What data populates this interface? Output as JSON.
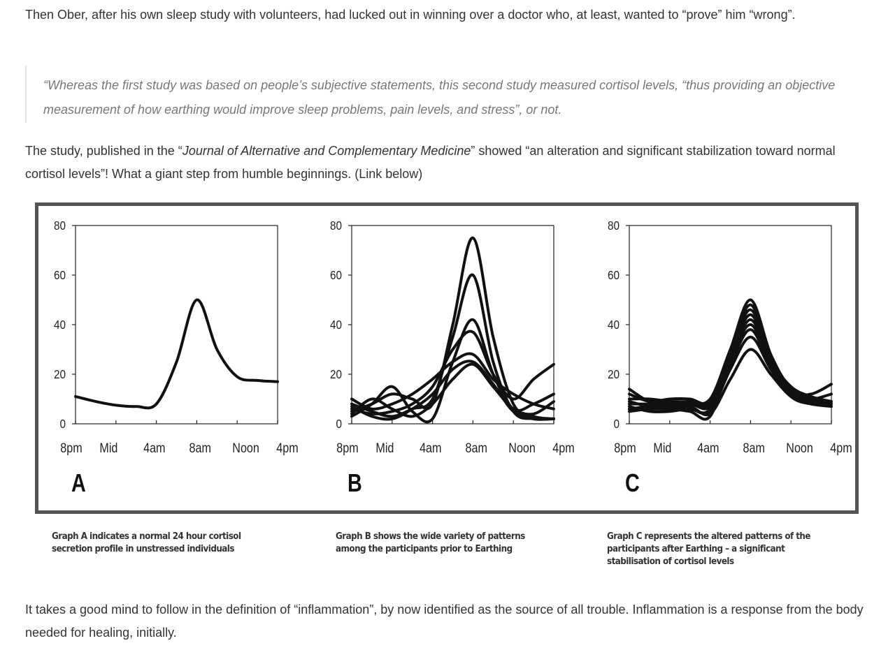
{
  "article": {
    "para1": "Then Ober, after his own sleep study with volunteers, had lucked out in winning over a doctor who, at least, wanted to “prove” him “wrong”.",
    "quote": "“Whereas the first study was based on people’s subjective statements, this second study measured cortisol levels, “thus providing an objective measurement of how earthing would improve sleep problems, pain levels, and stress”, or not.",
    "para2_pre": "The study, published in the “",
    "para2_journal": "Journal of Alternative and Complementary Medicine",
    "para2_post": "” showed “an alteration and significant stabilization toward normal cortisol levels”! What a giant step from humble beginnings. (Link below)",
    "para3": "It takes a good mind to follow in the definition of “inflammation”, by now identified as the source of all trouble. Inflammation is a response from the body needed for healing, initially."
  },
  "figure": {
    "border_color": "#555555",
    "captions": [
      "Graph A indicates a normal 24 hour cortisol secretion profile in unstressed individuals",
      "Graph B shows the wide variety of patterns among the participants prior to Earthing",
      "Graph C represents the altered patterns of the participants after Earthing – a significant stabilisation of cortisol levels"
    ]
  },
  "chart_data": [
    {
      "type": "line",
      "panel_label": "A",
      "x_ticks": [
        "8pm",
        "Mid",
        "4am",
        "8am",
        "Noon",
        "4pm"
      ],
      "y_ticks": [
        0,
        20,
        40,
        60,
        80
      ],
      "ylim": [
        0,
        80
      ],
      "x": [
        "8pm",
        "10pm",
        "Mid",
        "2am",
        "4am",
        "6am",
        "8am",
        "10am",
        "Noon",
        "2pm",
        "4pm"
      ],
      "series": [
        {
          "values": [
            11,
            9,
            7.5,
            7,
            8,
            25,
            50,
            30,
            19,
            17.5,
            17
          ]
        }
      ]
    },
    {
      "type": "line",
      "panel_label": "B",
      "x_ticks": [
        "8pm",
        "Mid",
        "4am",
        "8am",
        "Noon",
        "4pm"
      ],
      "y_ticks": [
        0,
        20,
        40,
        60,
        80
      ],
      "ylim": [
        0,
        80
      ],
      "x": [
        "8pm",
        "10pm",
        "Mid",
        "2am",
        "4am",
        "6am",
        "8am",
        "10am",
        "Noon",
        "2pm",
        "4pm"
      ],
      "series": [
        {
          "values": [
            5,
            8,
            12,
            10,
            8,
            40,
            75,
            35,
            8,
            3,
            2
          ]
        },
        {
          "values": [
            8,
            5,
            3,
            6,
            10,
            35,
            60,
            25,
            5,
            2,
            2
          ]
        },
        {
          "values": [
            3,
            8,
            15,
            5,
            2,
            25,
            42,
            20,
            6,
            8,
            12
          ]
        },
        {
          "values": [
            6,
            4,
            5,
            8,
            15,
            30,
            37,
            20,
            10,
            18,
            24
          ]
        },
        {
          "values": [
            10,
            6,
            8,
            12,
            18,
            25,
            28,
            18,
            12,
            8,
            6
          ]
        },
        {
          "values": [
            7,
            3,
            2,
            6,
            12,
            22,
            25,
            16,
            5,
            2,
            2
          ]
        },
        {
          "values": [
            4,
            10,
            6,
            3,
            8,
            18,
            24,
            15,
            6,
            4,
            9
          ]
        }
      ]
    },
    {
      "type": "line",
      "panel_label": "C",
      "x_ticks": [
        "8pm",
        "Mid",
        "4am",
        "8am",
        "Noon",
        "4pm"
      ],
      "y_ticks": [
        0,
        20,
        40,
        60,
        80
      ],
      "ylim": [
        0,
        80
      ],
      "x": [
        "8pm",
        "10pm",
        "Mid",
        "2am",
        "4am",
        "6am",
        "8am",
        "10am",
        "Noon",
        "2pm",
        "4pm"
      ],
      "series": [
        {
          "values": [
            14,
            9,
            9,
            9,
            10,
            30,
            50,
            28,
            14,
            10,
            8
          ]
        },
        {
          "values": [
            10,
            10,
            9,
            8,
            9,
            29,
            48,
            27,
            13,
            12,
            16
          ]
        },
        {
          "values": [
            8,
            8,
            8,
            9,
            8,
            28,
            46,
            26,
            15,
            11,
            9
          ]
        },
        {
          "values": [
            6,
            7,
            7,
            6,
            6,
            27,
            44,
            26,
            14,
            9,
            8
          ]
        },
        {
          "values": [
            12,
            9,
            10,
            10,
            9,
            26,
            42,
            25,
            12,
            10,
            12
          ]
        },
        {
          "values": [
            5,
            6,
            6,
            5,
            3,
            25,
            40,
            24,
            13,
            9,
            7
          ]
        },
        {
          "values": [
            9,
            7,
            7,
            8,
            7,
            24,
            38,
            23,
            12,
            9,
            9
          ]
        },
        {
          "values": [
            7,
            5,
            5,
            6,
            5,
            22,
            35,
            22,
            11,
            8,
            8
          ]
        },
        {
          "values": [
            6,
            6,
            6,
            7,
            4,
            18,
            30,
            20,
            11,
            8,
            7
          ]
        }
      ]
    }
  ]
}
